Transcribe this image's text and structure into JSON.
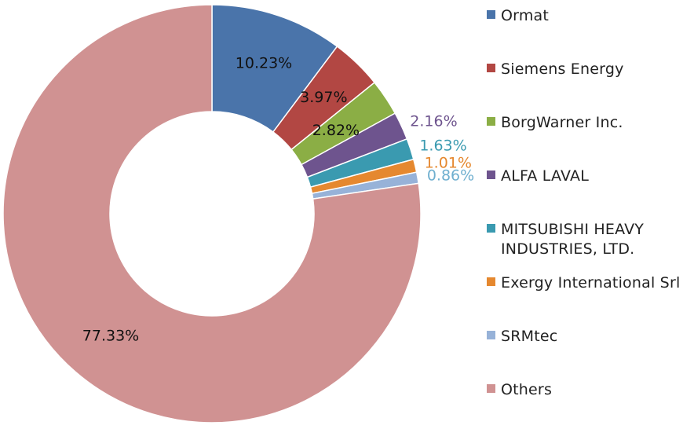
{
  "chart_data": {
    "type": "pie",
    "donut": true,
    "title": "",
    "legend_position": "right",
    "slices": [
      {
        "name": "Ormat",
        "value": 10.23,
        "label": "10.23%",
        "color": "#4A74AA",
        "label_placement": "inside",
        "label_color": "#111111"
      },
      {
        "name": "Siemens Energy",
        "value": 3.97,
        "label": "3.97%",
        "color": "#B24743",
        "label_placement": "inside",
        "label_color": "#111111"
      },
      {
        "name": "BorgWarner Inc.",
        "value": 2.82,
        "label": "2.82%",
        "color": "#8BAE45",
        "label_placement": "inside",
        "label_color": "#111111"
      },
      {
        "name": "ALFA LAVAL",
        "value": 2.16,
        "label": "2.16%",
        "color": "#6E548E",
        "label_placement": "outside",
        "label_color": "#6E548E"
      },
      {
        "name": "MITSUBISHI HEAVY INDUSTRIES, LTD.",
        "value": 1.63,
        "label": "1.63%",
        "color": "#3A9AB0",
        "label_placement": "outside",
        "label_color": "#3A9AB0"
      },
      {
        "name": "Exergy International Srl",
        "value": 1.01,
        "label": "1.01%",
        "color": "#E5882F",
        "label_placement": "outside",
        "label_color": "#E5882F"
      },
      {
        "name": "SRMtec",
        "value": 0.86,
        "label": "0.86%",
        "color": "#97B2D8",
        "label_placement": "outside",
        "label_color": "#6FAFCF"
      },
      {
        "name": "Others",
        "value": 77.33,
        "label": "77.33%",
        "color": "#D09292",
        "label_placement": "inside",
        "label_color": "#111111"
      }
    ],
    "legend": [
      {
        "lines": [
          "Ormat"
        ],
        "color": "#4A74AA"
      },
      {
        "lines": [
          "Siemens Energy"
        ],
        "color": "#B24743"
      },
      {
        "lines": [
          "BorgWarner Inc."
        ],
        "color": "#8BAE45"
      },
      {
        "lines": [
          "ALFA LAVAL"
        ],
        "color": "#6E548E"
      },
      {
        "lines": [
          "MITSUBISHI HEAVY",
          "INDUSTRIES, LTD."
        ],
        "color": "#3A9AB0"
      },
      {
        "lines": [
          "Exergy International Srl"
        ],
        "color": "#E5882F"
      },
      {
        "lines": [
          "SRMtec"
        ],
        "color": "#97B2D8"
      },
      {
        "lines": [
          "Others"
        ],
        "color": "#D09292"
      }
    ]
  }
}
